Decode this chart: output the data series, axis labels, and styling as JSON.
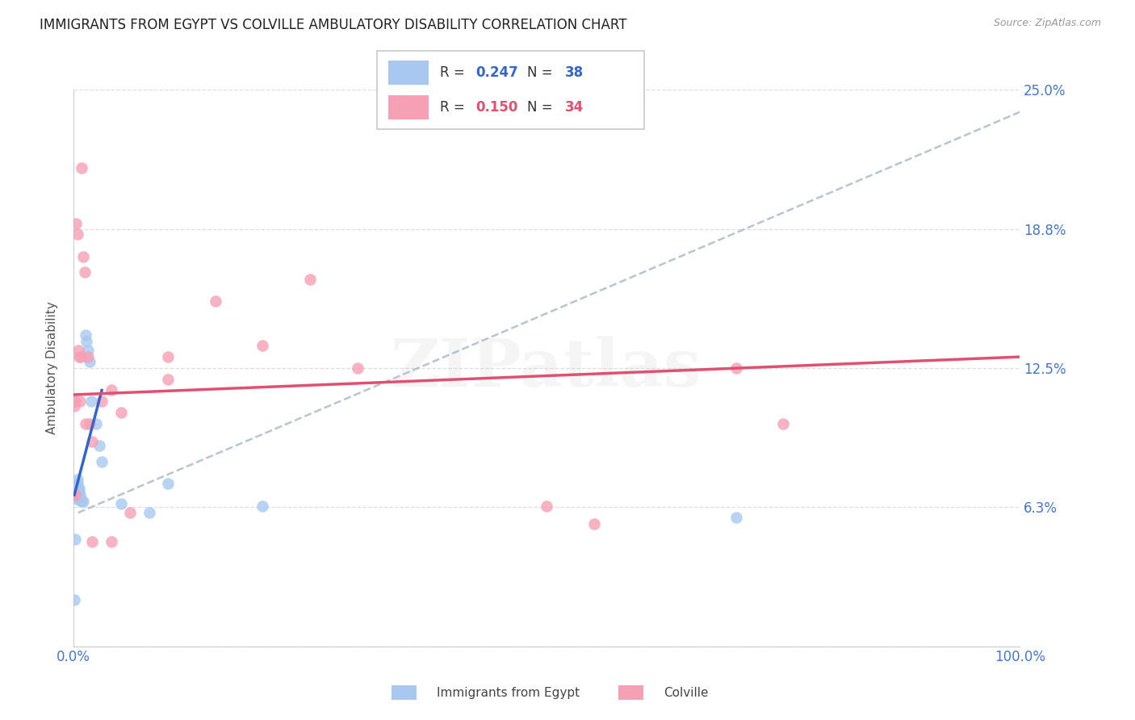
{
  "title": "IMMIGRANTS FROM EGYPT VS COLVILLE AMBULATORY DISABILITY CORRELATION CHART",
  "source": "Source: ZipAtlas.com",
  "ylabel": "Ambulatory Disability",
  "xlim": [
    0.0,
    1.0
  ],
  "ylim": [
    0.0,
    0.25
  ],
  "yticks": [
    0.0,
    0.0625,
    0.125,
    0.1875,
    0.25
  ],
  "ytick_labels": [
    "",
    "6.3%",
    "12.5%",
    "18.8%",
    "25.0%"
  ],
  "R_egypt": 0.247,
  "N_egypt": 38,
  "R_colville": 0.15,
  "N_colville": 34,
  "egypt_color": "#a8c8f0",
  "colville_color": "#f5a0b5",
  "egypt_line_color": "#3366cc",
  "colville_line_color": "#e05070",
  "dashed_color": "#aabbcc",
  "egypt_dots": [
    [
      0.001,
      0.072
    ],
    [
      0.001,
      0.07
    ],
    [
      0.001,
      0.069
    ],
    [
      0.002,
      0.07
    ],
    [
      0.002,
      0.071
    ],
    [
      0.002,
      0.069
    ],
    [
      0.002,
      0.068
    ],
    [
      0.003,
      0.072
    ],
    [
      0.003,
      0.07
    ],
    [
      0.003,
      0.068
    ],
    [
      0.003,
      0.067
    ],
    [
      0.004,
      0.073
    ],
    [
      0.004,
      0.075
    ],
    [
      0.004,
      0.069
    ],
    [
      0.005,
      0.07
    ],
    [
      0.005,
      0.068
    ],
    [
      0.005,
      0.066
    ],
    [
      0.006,
      0.071
    ],
    [
      0.006,
      0.069
    ],
    [
      0.007,
      0.068
    ],
    [
      0.008,
      0.066
    ],
    [
      0.009,
      0.065
    ],
    [
      0.01,
      0.065
    ],
    [
      0.013,
      0.14
    ],
    [
      0.014,
      0.137
    ],
    [
      0.015,
      0.133
    ],
    [
      0.017,
      0.128
    ],
    [
      0.019,
      0.11
    ],
    [
      0.024,
      0.1
    ],
    [
      0.027,
      0.09
    ],
    [
      0.03,
      0.083
    ],
    [
      0.05,
      0.064
    ],
    [
      0.08,
      0.06
    ],
    [
      0.1,
      0.073
    ],
    [
      0.2,
      0.063
    ],
    [
      0.7,
      0.058
    ],
    [
      0.001,
      0.021
    ],
    [
      0.002,
      0.048
    ]
  ],
  "colville_dots": [
    [
      0.001,
      0.068
    ],
    [
      0.001,
      0.108
    ],
    [
      0.002,
      0.11
    ],
    [
      0.003,
      0.19
    ],
    [
      0.004,
      0.185
    ],
    [
      0.005,
      0.133
    ],
    [
      0.006,
      0.13
    ],
    [
      0.007,
      0.11
    ],
    [
      0.008,
      0.13
    ],
    [
      0.009,
      0.215
    ],
    [
      0.01,
      0.175
    ],
    [
      0.012,
      0.168
    ],
    [
      0.013,
      0.1
    ],
    [
      0.015,
      0.13
    ],
    [
      0.017,
      0.1
    ],
    [
      0.02,
      0.092
    ],
    [
      0.03,
      0.11
    ],
    [
      0.04,
      0.115
    ],
    [
      0.05,
      0.105
    ],
    [
      0.06,
      0.06
    ],
    [
      0.1,
      0.13
    ],
    [
      0.1,
      0.12
    ],
    [
      0.15,
      0.155
    ],
    [
      0.2,
      0.135
    ],
    [
      0.25,
      0.165
    ],
    [
      0.3,
      0.125
    ],
    [
      0.5,
      0.063
    ],
    [
      0.55,
      0.055
    ],
    [
      0.7,
      0.125
    ],
    [
      0.75,
      0.1
    ],
    [
      0.02,
      0.047
    ],
    [
      0.04,
      0.047
    ],
    [
      0.001,
      0.11
    ],
    [
      0.002,
      0.068
    ]
  ],
  "egypt_solid_line": [
    [
      0.001,
      0.068
    ],
    [
      0.03,
      0.115
    ]
  ],
  "colville_solid_line": [
    [
      0.0,
      0.113
    ],
    [
      1.0,
      0.13
    ]
  ],
  "dashed_line": [
    [
      0.005,
      0.06
    ],
    [
      1.0,
      0.24
    ]
  ],
  "background_color": "#ffffff",
  "grid_color": "#dddddd",
  "title_color": "#222222",
  "right_label_color": "#4477cc",
  "watermark": "ZIPatlas"
}
